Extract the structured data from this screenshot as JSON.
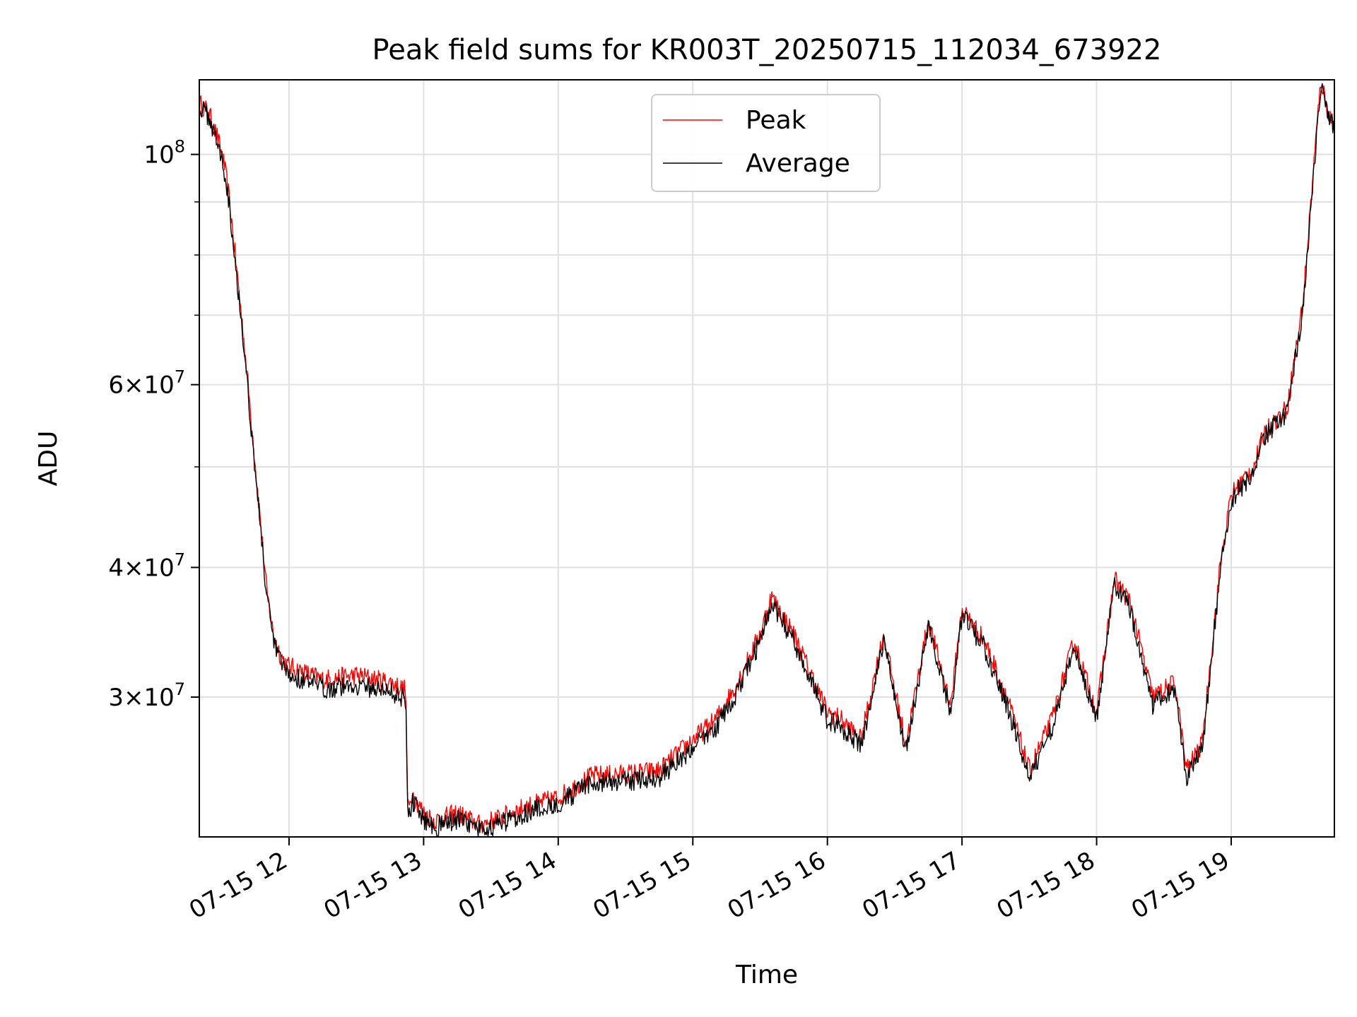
{
  "chart_data": {
    "type": "line",
    "title": "Peak field sums for KR003T_20250715_112034_673922",
    "xlabel": "Time",
    "ylabel": "ADU",
    "yscale": "log",
    "xlim": [
      "2025-07-15 11:20",
      "2025-07-15 19:46"
    ],
    "ylim": [
      22000000,
      118000000
    ],
    "x_ticks": [
      "07-15 12",
      "07-15 13",
      "07-15 14",
      "07-15 15",
      "07-15 16",
      "07-15 17",
      "07-15 18",
      "07-15 19"
    ],
    "y_ticks": [
      {
        "value": 100000000,
        "mantissa": "",
        "exp": "8"
      },
      {
        "value": 60000000,
        "mantissa": "6",
        "exp": "7"
      },
      {
        "value": 40000000,
        "mantissa": "4",
        "exp": "7"
      },
      {
        "value": 30000000,
        "mantissa": "3",
        "exp": "7"
      }
    ],
    "y_minor_ticks": [
      90000000,
      80000000,
      70000000,
      50000000
    ],
    "grid": true,
    "legend": {
      "position": "top-center",
      "entries": [
        "Peak",
        "Average"
      ]
    },
    "colors": {
      "Peak": "#ff0000",
      "Average": "#000000"
    },
    "series": [
      {
        "name": "Peak",
        "x": [
          "2025-07-15 11:20",
          "2025-07-15 11:24",
          "2025-07-15 11:28",
          "2025-07-15 11:31",
          "2025-07-15 11:33",
          "2025-07-15 11:36",
          "2025-07-15 11:40",
          "2025-07-15 11:44",
          "2025-07-15 11:47",
          "2025-07-15 11:50",
          "2025-07-15 11:53",
          "2025-07-15 11:56",
          "2025-07-15 11:59",
          "2025-07-15 12:05",
          "2025-07-15 12:15",
          "2025-07-15 12:30",
          "2025-07-15 12:45",
          "2025-07-15 12:52",
          "2025-07-15 12:53",
          "2025-07-15 12:55",
          "2025-07-15 13:00",
          "2025-07-15 13:05",
          "2025-07-15 13:15",
          "2025-07-15 13:25",
          "2025-07-15 13:35",
          "2025-07-15 13:45",
          "2025-07-15 14:00",
          "2025-07-15 14:15",
          "2025-07-15 14:30",
          "2025-07-15 14:45",
          "2025-07-15 15:00",
          "2025-07-15 15:10",
          "2025-07-15 15:20",
          "2025-07-15 15:30",
          "2025-07-15 15:35",
          "2025-07-15 15:45",
          "2025-07-15 16:00",
          "2025-07-15 16:05",
          "2025-07-15 16:15",
          "2025-07-15 16:25",
          "2025-07-15 16:35",
          "2025-07-15 16:45",
          "2025-07-15 16:55",
          "2025-07-15 17:00",
          "2025-07-15 17:10",
          "2025-07-15 17:20",
          "2025-07-15 17:30",
          "2025-07-15 17:40",
          "2025-07-15 17:50",
          "2025-07-15 18:00",
          "2025-07-15 18:08",
          "2025-07-15 18:15",
          "2025-07-15 18:25",
          "2025-07-15 18:35",
          "2025-07-15 18:40",
          "2025-07-15 18:47",
          "2025-07-15 18:55",
          "2025-07-15 19:00",
          "2025-07-15 19:10",
          "2025-07-15 19:15",
          "2025-07-15 19:25",
          "2025-07-15 19:32",
          "2025-07-15 19:38",
          "2025-07-15 19:40",
          "2025-07-15 19:43",
          "2025-07-15 19:46"
        ],
        "y": [
          112000000,
          110000000,
          104000000,
          98000000,
          92000000,
          80000000,
          66000000,
          53000000,
          45000000,
          38000000,
          34500000,
          33000000,
          32200000,
          31800000,
          31200000,
          31500000,
          31000000,
          30500000,
          23200000,
          24200000,
          23200000,
          22800000,
          23200000,
          22600000,
          23000000,
          23500000,
          24000000,
          25200000,
          25300000,
          25500000,
          27300000,
          28500000,
          31000000,
          34500000,
          37500000,
          34500000,
          29000000,
          28700000,
          27300000,
          34500000,
          27000000,
          35500000,
          29500000,
          36500000,
          34000000,
          30000000,
          25500000,
          28500000,
          34000000,
          29000000,
          39000000,
          37000000,
          30000000,
          31000000,
          25500000,
          27000000,
          40000000,
          47000000,
          50000000,
          54000000,
          57000000,
          72000000,
          105000000,
          118000000,
          110000000,
          107000000
        ]
      },
      {
        "name": "Average",
        "x": [
          "2025-07-15 11:20",
          "2025-07-15 11:24",
          "2025-07-15 11:28",
          "2025-07-15 11:31",
          "2025-07-15 11:33",
          "2025-07-15 11:36",
          "2025-07-15 11:40",
          "2025-07-15 11:44",
          "2025-07-15 11:47",
          "2025-07-15 11:50",
          "2025-07-15 11:53",
          "2025-07-15 11:56",
          "2025-07-15 11:59",
          "2025-07-15 12:05",
          "2025-07-15 12:15",
          "2025-07-15 12:30",
          "2025-07-15 12:45",
          "2025-07-15 12:52",
          "2025-07-15 12:53",
          "2025-07-15 12:55",
          "2025-07-15 13:00",
          "2025-07-15 13:05",
          "2025-07-15 13:15",
          "2025-07-15 13:25",
          "2025-07-15 13:35",
          "2025-07-15 13:45",
          "2025-07-15 14:00",
          "2025-07-15 14:15",
          "2025-07-15 14:30",
          "2025-07-15 14:45",
          "2025-07-15 15:00",
          "2025-07-15 15:10",
          "2025-07-15 15:20",
          "2025-07-15 15:30",
          "2025-07-15 15:35",
          "2025-07-15 15:45",
          "2025-07-15 16:00",
          "2025-07-15 16:05",
          "2025-07-15 16:15",
          "2025-07-15 16:25",
          "2025-07-15 16:35",
          "2025-07-15 16:45",
          "2025-07-15 16:55",
          "2025-07-15 17:00",
          "2025-07-15 17:10",
          "2025-07-15 17:20",
          "2025-07-15 17:30",
          "2025-07-15 17:40",
          "2025-07-15 17:50",
          "2025-07-15 18:00",
          "2025-07-15 18:08",
          "2025-07-15 18:15",
          "2025-07-15 18:25",
          "2025-07-15 18:35",
          "2025-07-15 18:40",
          "2025-07-15 18:47",
          "2025-07-15 18:55",
          "2025-07-15 19:00",
          "2025-07-15 19:10",
          "2025-07-15 19:15",
          "2025-07-15 19:25",
          "2025-07-15 19:32",
          "2025-07-15 19:38",
          "2025-07-15 19:40",
          "2025-07-15 19:43",
          "2025-07-15 19:46"
        ],
        "y": [
          111000000,
          109000000,
          103000000,
          97000000,
          91000000,
          79000000,
          65000000,
          52000000,
          44500000,
          37500000,
          34000000,
          32500000,
          31600000,
          31200000,
          30600000,
          30800000,
          30400000,
          29900000,
          22900000,
          23800000,
          22900000,
          22500000,
          22900000,
          22300000,
          22700000,
          23200000,
          23700000,
          24800000,
          24900000,
          25100000,
          26800000,
          28000000,
          30400000,
          34000000,
          37000000,
          34000000,
          28500000,
          28200000,
          26900000,
          34000000,
          26600000,
          35000000,
          29000000,
          36000000,
          33500000,
          29500000,
          25100000,
          28000000,
          33500000,
          28500000,
          38500000,
          36500000,
          29500000,
          30500000,
          25100000,
          26600000,
          39500000,
          46500000,
          49500000,
          53500000,
          56500000,
          71000000,
          104000000,
          117000000,
          109000000,
          106000000
        ]
      }
    ]
  }
}
